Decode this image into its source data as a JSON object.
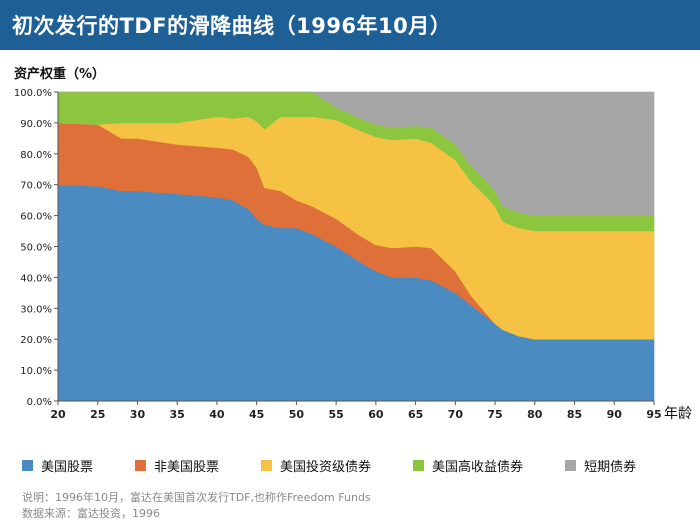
{
  "header": {
    "title": "初次发行的TDF的滑降曲线（1996年10月）"
  },
  "chart_data": {
    "type": "area",
    "stacked": true,
    "ylabel": "资产权重（%）",
    "xlabel": "年龄",
    "xlim": [
      20,
      95
    ],
    "ylim": [
      0,
      100
    ],
    "x_ticks": [
      20,
      25,
      30,
      35,
      40,
      45,
      50,
      55,
      60,
      65,
      70,
      75,
      80,
      85,
      90,
      95
    ],
    "y_ticks": [
      "0.0%",
      "10.0%",
      "20.0%",
      "30.0%",
      "40.0%",
      "50.0%",
      "60.0%",
      "70.0%",
      "80.0%",
      "90.0%",
      "100.0%"
    ],
    "x": [
      20,
      25,
      28,
      30,
      35,
      40,
      42,
      44,
      45,
      46,
      48,
      50,
      52,
      55,
      58,
      60,
      62,
      65,
      67,
      70,
      72,
      74,
      75,
      76,
      78,
      80,
      85,
      90,
      95
    ],
    "series": [
      {
        "name": "美国股票",
        "color": "#4a8bc2",
        "values": [
          70,
          69.5,
          68,
          68,
          67,
          66,
          65,
          62,
          59,
          57,
          56,
          56,
          54,
          50,
          45,
          42,
          40,
          40,
          39,
          35,
          31,
          27,
          25,
          23,
          21,
          20,
          20,
          20,
          20
        ]
      },
      {
        "name": "非美国股票",
        "color": "#e0703a",
        "values": [
          20,
          20,
          17,
          17,
          16,
          16,
          16.5,
          17,
          16.5,
          12,
          12,
          9,
          9,
          9,
          8.5,
          8.5,
          9.5,
          10,
          10.5,
          7,
          3,
          1,
          0,
          0,
          0,
          0,
          0,
          0,
          0
        ]
      },
      {
        "name": "美国投资级债券",
        "color": "#f5c243",
        "values": [
          0,
          0,
          5,
          5,
          7,
          10,
          10,
          13,
          15,
          19,
          24,
          27,
          29,
          32,
          34,
          35,
          35,
          35,
          34,
          36,
          37,
          38,
          38,
          35,
          35,
          35,
          35,
          35,
          35
        ]
      },
      {
        "name": "美国高收益债券",
        "color": "#8cc63f",
        "values": [
          10,
          10.5,
          10,
          10,
          10,
          8,
          8.5,
          8,
          9.5,
          12,
          8,
          8,
          8,
          4,
          4,
          4,
          4,
          4,
          5,
          5,
          5,
          5,
          5,
          5,
          5,
          5,
          5,
          5,
          5
        ]
      },
      {
        "name": "短期债券",
        "color": "#a6a6a6",
        "values": [
          0,
          0,
          0,
          0,
          0,
          0,
          0,
          0,
          0,
          0,
          0,
          0,
          0,
          5,
          8.5,
          10.5,
          11.5,
          11,
          11.5,
          17,
          24,
          29,
          32,
          37,
          39,
          40,
          40,
          40,
          40
        ]
      }
    ]
  },
  "notes": {
    "line1": "说明：1996年10月，富达在美国首次发行TDF,也称作Freedom Funds",
    "line2": "数据来源：富达投资，1996"
  }
}
